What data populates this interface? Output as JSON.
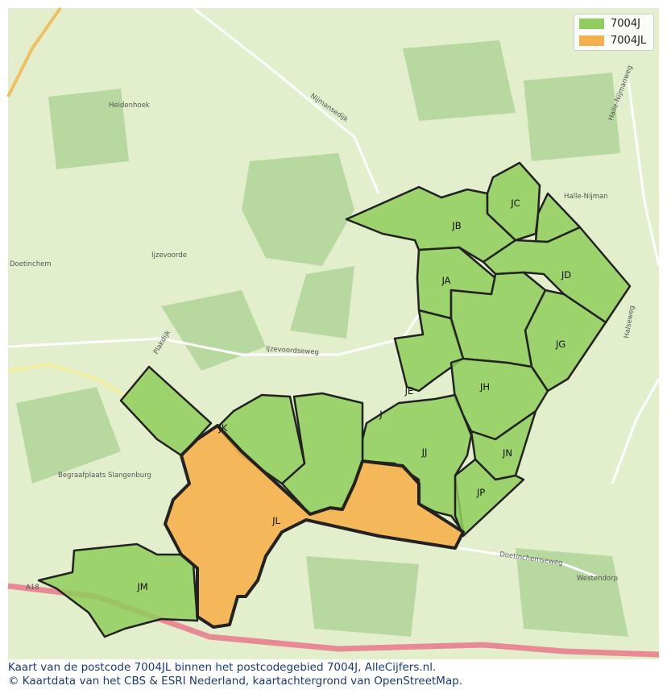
{
  "legend": [
    {
      "label": "7004J",
      "color": "#8fce5c"
    },
    {
      "label": "7004JL",
      "color": "#f5b04d"
    }
  ],
  "areas": [
    "JB",
    "JC",
    "JD",
    "JA",
    "JG",
    "JE",
    "JH",
    "J",
    "JJ",
    "JN",
    "JP",
    "JK",
    "JL",
    "JM"
  ],
  "places": [
    "Heidenhoek",
    "Ijzevoorde",
    "Doetinchem",
    "Halle-Nijman",
    "Westendorp",
    "Begraafplaats Slangenburg",
    "Nijmansedijk",
    "Ijzevoordseweg",
    "Doetinchemseweg",
    "Plakdijk",
    "Halle-Nijmanweg",
    "Halseweg",
    "A18"
  ],
  "caption": {
    "line1": "Kaart van de postcode 7004JL binnen het postcodegebied 7004J, AlleCijfers.nl.",
    "line2": "© Kaartdata van het CBS & ESRI Nederland, kaartachtergrond van OpenStreetMap."
  }
}
